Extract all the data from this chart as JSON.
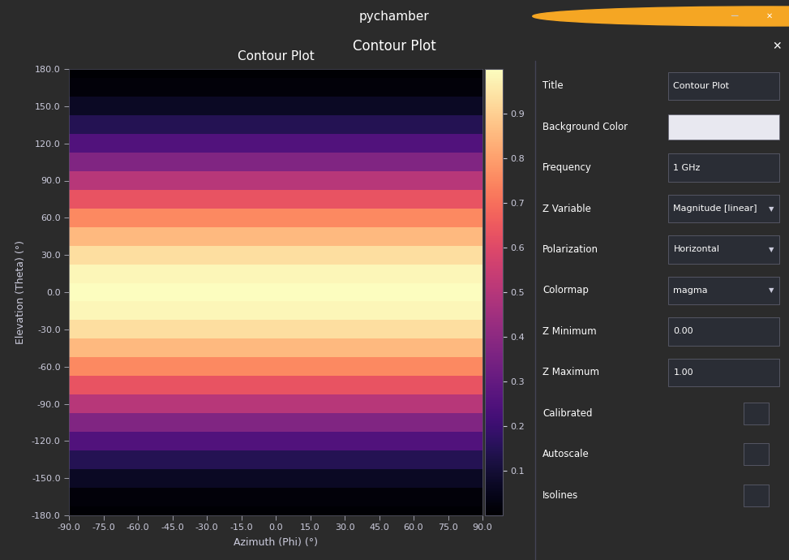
{
  "title": "Contour Plot",
  "xlabel": "Azimuth (Phi) (°)",
  "ylabel": "Elevation (Theta) (°)",
  "phi_min": -90,
  "phi_max": 90,
  "phi_ticks": [
    -90,
    -75,
    -60,
    -45,
    -30,
    -15,
    0,
    15,
    30,
    45,
    60,
    75,
    90
  ],
  "theta_ticks": [
    -180,
    -150,
    -120,
    -90,
    -60,
    -30,
    0,
    30,
    60,
    90,
    120,
    150,
    180
  ],
  "colormap": "magma",
  "vmin": 0.0,
  "vmax": 1.0,
  "colorbar_ticks": [
    0.1,
    0.2,
    0.3,
    0.4,
    0.5,
    0.6,
    0.7,
    0.8,
    0.9
  ],
  "window_bg": "#2b2b2b",
  "titlebar_bg": "#4a4440",
  "subbar_bg": "#1e8bc3",
  "panel_bg": "#1e2128",
  "sidebar_bg": "#1e2128",
  "plot_bg": "#0d0d12",
  "text_color_white": "#ffffff",
  "text_color_blue": "#5bc8f5",
  "tick_color": "#ccccdd",
  "label_fontsize": 9,
  "tick_fontsize": 8,
  "title_fontsize": 11,
  "sidebar_labels": [
    "Title",
    "Background Color",
    "Frequency",
    "Z Variable",
    "Polarization",
    "Colormap",
    "Z Minimum",
    "Z Maximum",
    "Calibrated",
    "Autoscale",
    "Isolines"
  ],
  "sidebar_values": [
    "Contour Plot",
    "",
    "1 GHz",
    "Magnitude [linear]",
    "Horizontal",
    "magma",
    "0.00",
    "1.00",
    "",
    "",
    ""
  ],
  "titlebar_title": "pychamber",
  "subbar_title": "Contour Plot"
}
